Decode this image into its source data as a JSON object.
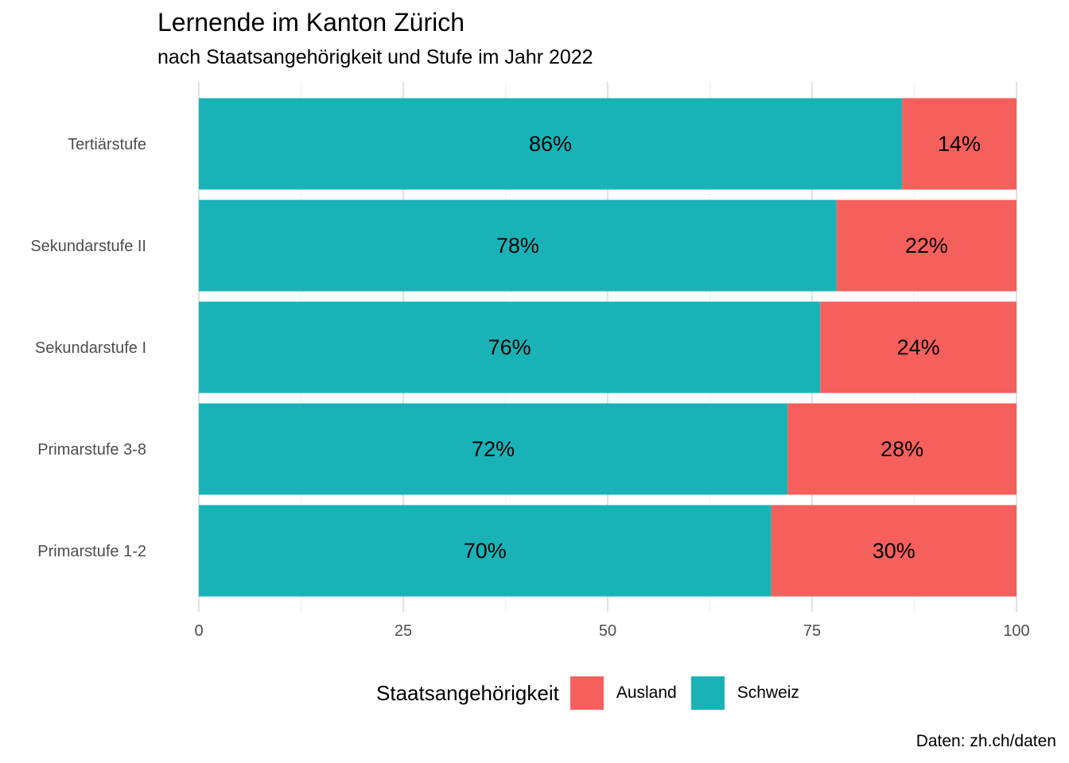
{
  "title": "Lernende im Kanton Zürich",
  "subtitle": "nach Staatsangehörigkeit und Stufe im Jahr 2022",
  "caption": "Daten: zh.ch/daten",
  "legend": {
    "title": "Staatsangehörigkeit",
    "items": [
      {
        "label": "Ausland",
        "color": "#F5605C"
      },
      {
        "label": "Schweiz",
        "color": "#19B3B7"
      }
    ]
  },
  "chart_data": {
    "type": "bar",
    "orientation": "horizontal",
    "stacked": true,
    "categories": [
      "Tertiärstufe",
      "Sekundarstufe II",
      "Sekundarstufe I",
      "Primarstufe 3-8",
      "Primarstufe 1-2"
    ],
    "series": [
      {
        "name": "Schweiz",
        "color": "#19B3B7",
        "values": [
          86,
          78,
          76,
          72,
          70
        ],
        "labels": [
          "86%",
          "78%",
          "76%",
          "72%",
          "70%"
        ]
      },
      {
        "name": "Ausland",
        "color": "#F5605C",
        "values": [
          14,
          22,
          24,
          28,
          30
        ],
        "labels": [
          "14%",
          "22%",
          "24%",
          "28%",
          "30%"
        ]
      }
    ],
    "xlim": [
      0,
      100
    ],
    "xticks": [
      0,
      25,
      50,
      75,
      100
    ],
    "xtick_labels": [
      "0",
      "25",
      "50",
      "75",
      "100"
    ],
    "grid": true,
    "xlabel": "",
    "ylabel": "",
    "legend_position": "bottom"
  }
}
